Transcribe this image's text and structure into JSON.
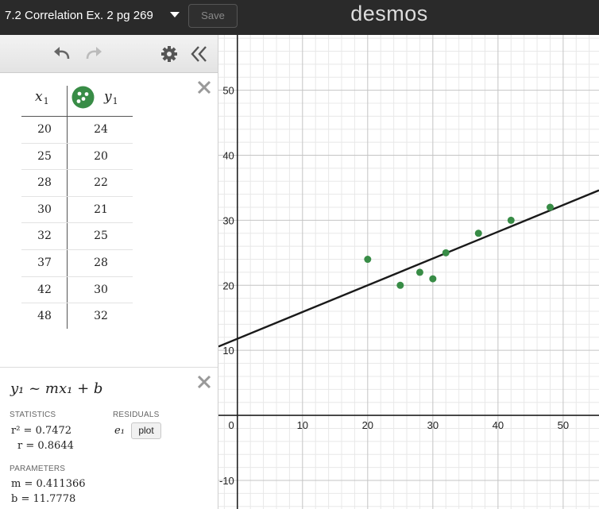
{
  "topbar": {
    "graph_title": "7.2 Correlation Ex. 2 pg 269",
    "save_label": "Save",
    "logo": "desmos"
  },
  "table": {
    "x_header": "x",
    "x_sub": "1",
    "y_header": "y",
    "y_sub": "1",
    "point_color": "#388c46",
    "rows": [
      {
        "x": "20",
        "y": "24"
      },
      {
        "x": "25",
        "y": "20"
      },
      {
        "x": "28",
        "y": "22"
      },
      {
        "x": "30",
        "y": "21"
      },
      {
        "x": "32",
        "y": "25"
      },
      {
        "x": "37",
        "y": "28"
      },
      {
        "x": "42",
        "y": "30"
      },
      {
        "x": "48",
        "y": "32"
      }
    ]
  },
  "regression": {
    "formula": "y₁ ~ mx₁ + b",
    "statistics_label": "STATISTICS",
    "residuals_label": "RESIDUALS",
    "r_squared": "r² = 0.7472",
    "r": "r = 0.8644",
    "residual_var": "e₁",
    "plot_label": "plot",
    "parameters_label": "PARAMETERS",
    "m": "m = 0.411366",
    "b": "b = 11.7778"
  },
  "chart_data": {
    "type": "scatter",
    "x": [
      20,
      25,
      28,
      30,
      32,
      37,
      42,
      48
    ],
    "y": [
      24,
      20,
      22,
      21,
      25,
      28,
      30,
      32
    ],
    "fit_line": {
      "slope": 0.411366,
      "intercept": 11.7778
    },
    "xlim": [
      -2.9,
      55.5
    ],
    "ylim": [
      -14.4,
      58.5
    ],
    "x_ticks": [
      "0",
      "10",
      "20",
      "30",
      "40",
      "50"
    ],
    "y_ticks": [
      "-10",
      "10",
      "20",
      "30",
      "40",
      "50"
    ],
    "grid": true,
    "point_color": "#388c46",
    "line_color": "#1a1a1a"
  }
}
